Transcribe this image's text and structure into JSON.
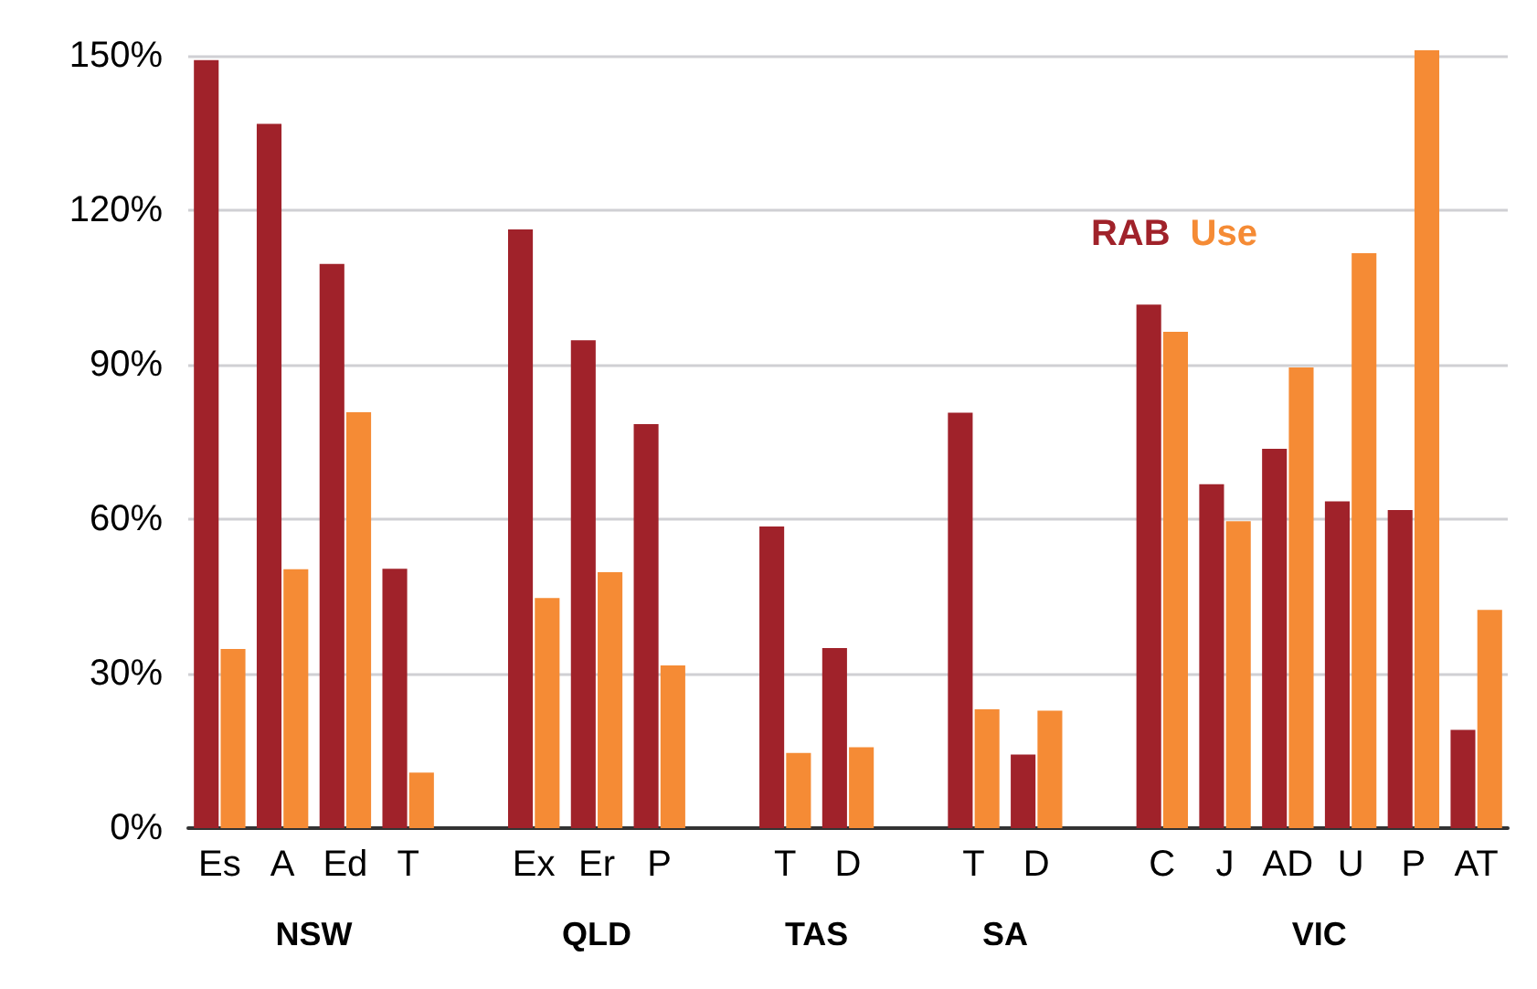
{
  "chart_data": {
    "type": "bar",
    "categories": [
      "Es",
      "A",
      "Ed",
      "T",
      null,
      "Ex",
      "Er",
      "P",
      null,
      "T",
      "D",
      null,
      "T",
      "D",
      null,
      "C",
      "J",
      "AD",
      "U",
      "P",
      "AT"
    ],
    "series": [
      {
        "name": "RAB",
        "color": "#a0222a",
        "values": [
          149.2,
          136.8,
          109.6,
          50.4,
          null,
          116.3,
          94.8,
          78.5,
          null,
          58.6,
          35.0,
          null,
          80.7,
          14.3,
          null,
          101.7,
          66.8,
          73.7,
          63.5,
          61.8,
          19.1
        ]
      },
      {
        "name": "Use",
        "color": "#f58b35",
        "values": [
          34.8,
          50.3,
          80.8,
          10.8,
          null,
          44.7,
          49.7,
          31.6,
          null,
          14.6,
          15.7,
          null,
          23.1,
          22.8,
          null,
          96.4,
          59.6,
          89.5,
          111.7,
          151.1,
          42.4
        ]
      }
    ],
    "ylim": [
      0,
      152
    ],
    "yticks": [
      {
        "value": 0,
        "label": "0%"
      },
      {
        "value": 30,
        "label": "30%"
      },
      {
        "value": 60,
        "label": "60%"
      },
      {
        "value": 90,
        "label": "90%"
      },
      {
        "value": 120,
        "label": "120%"
      },
      {
        "value": 150,
        "label": "150%"
      }
    ],
    "annotations": [
      "NSW",
      "QLD",
      "TAS",
      "SA",
      "VIC"
    ],
    "grid": "y",
    "legend": "top right"
  }
}
